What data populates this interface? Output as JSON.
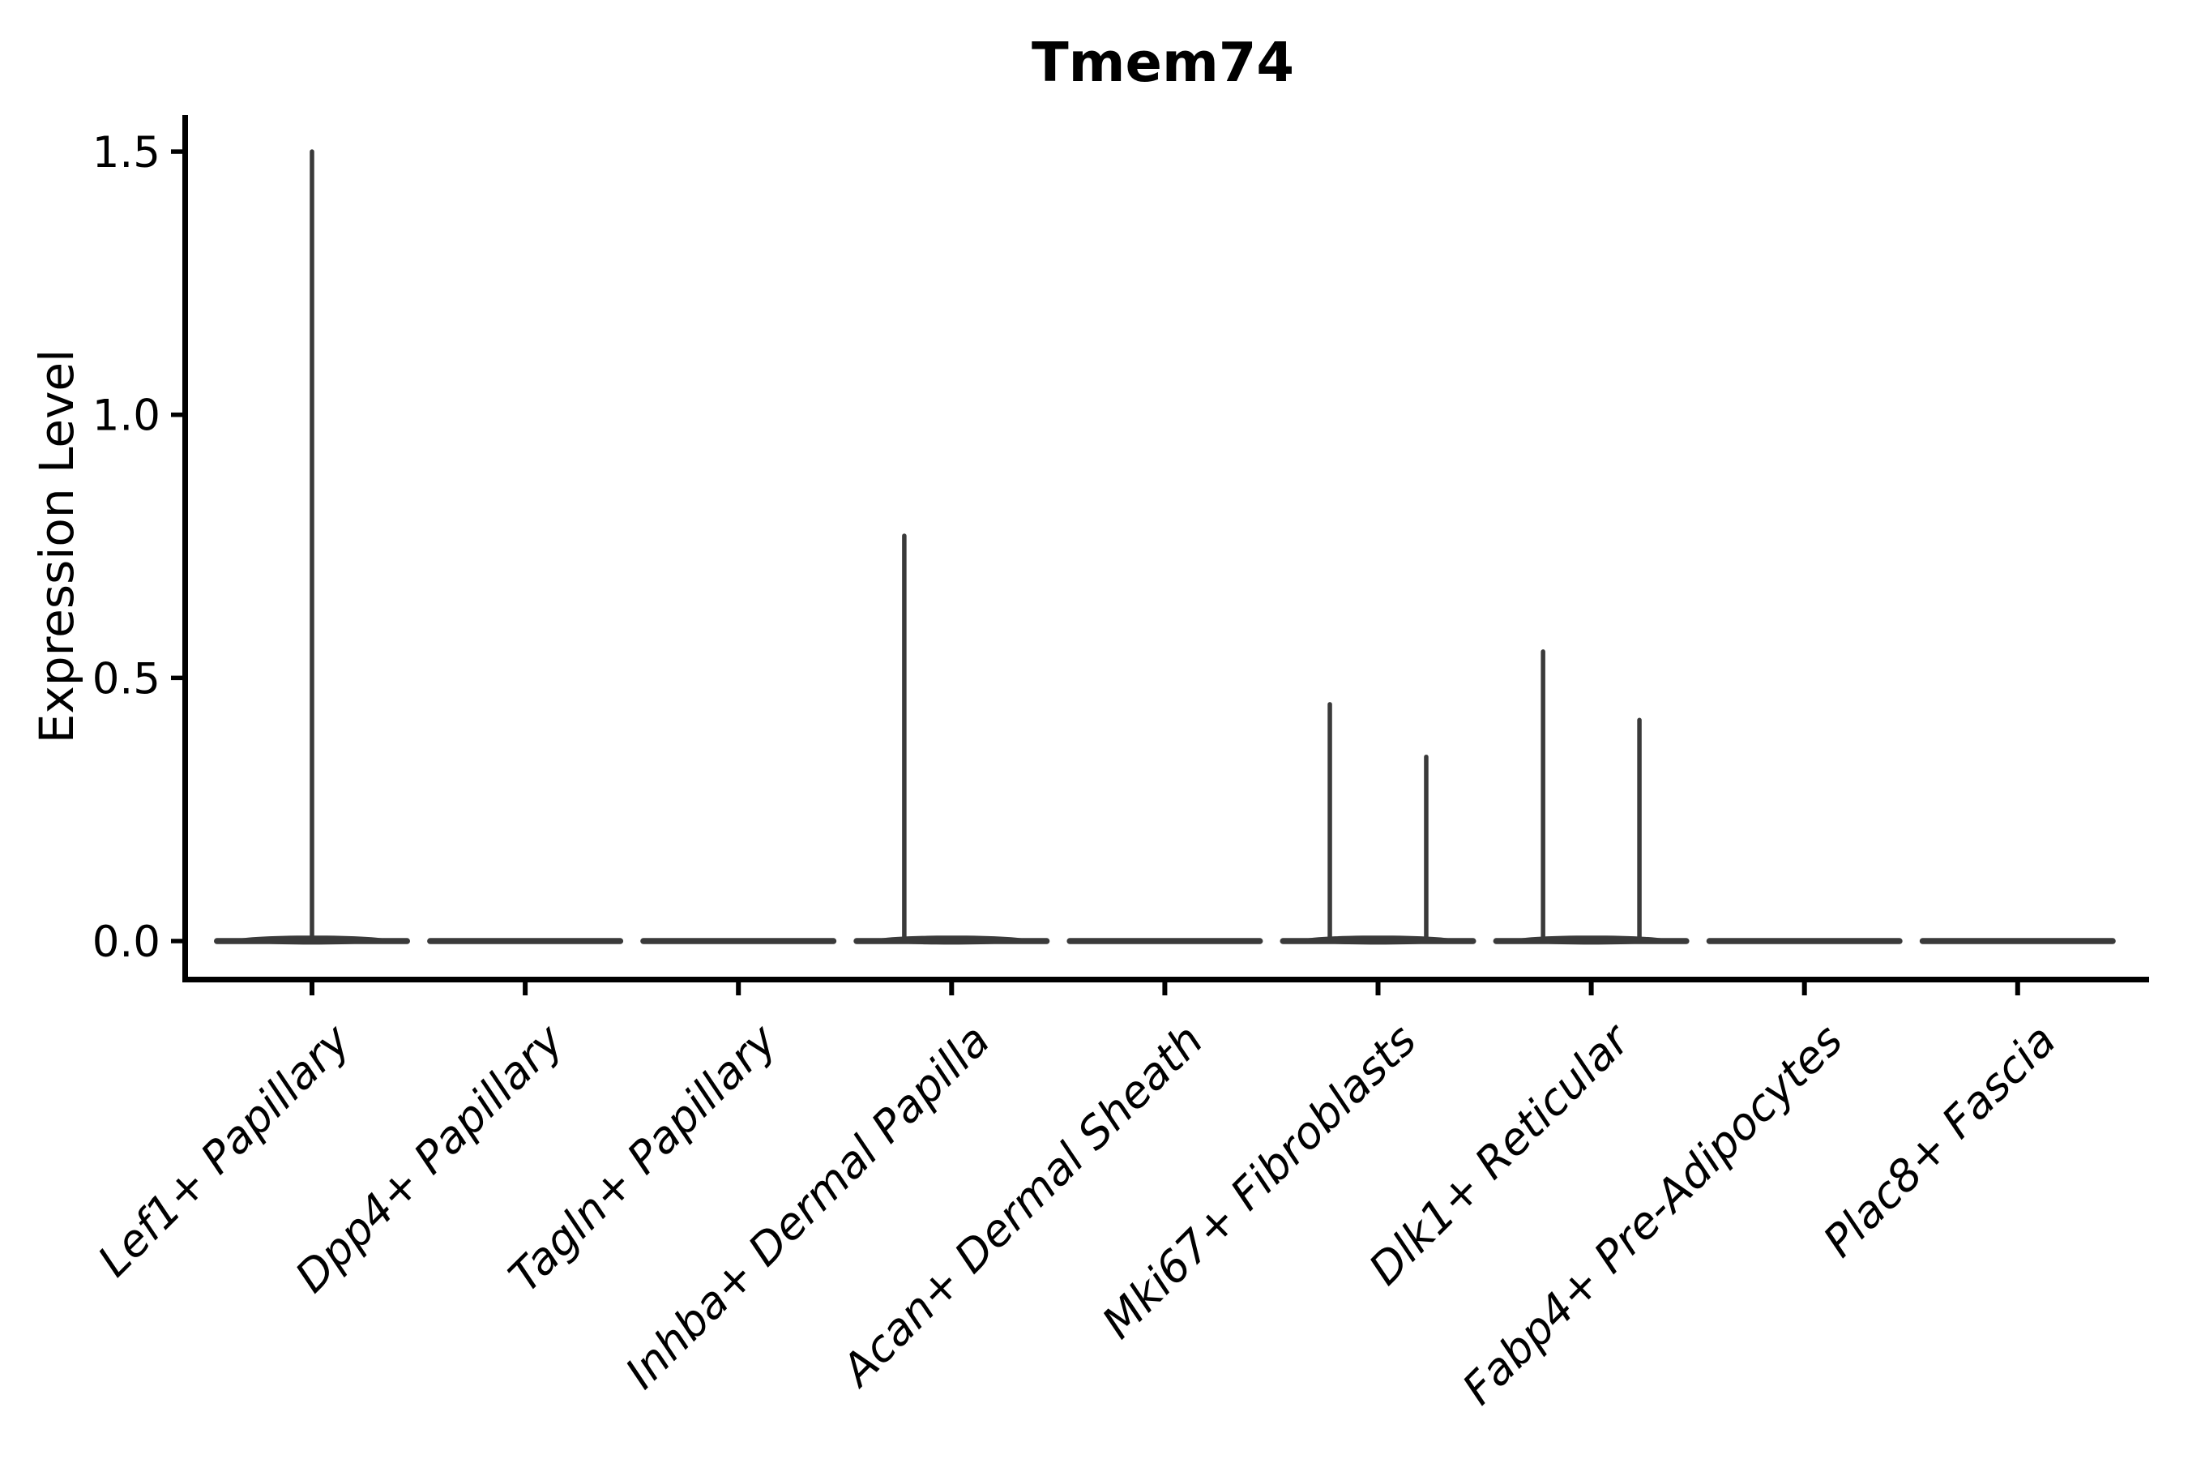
{
  "chart_data": {
    "type": "violin",
    "title": "Tmem74",
    "xlabel": "",
    "ylabel": "Expression Level",
    "ylim": [
      0,
      1.5
    ],
    "yticks": [
      {
        "value": 0.0,
        "label": "0.0"
      },
      {
        "value": 0.5,
        "label": "0.5"
      },
      {
        "value": 1.0,
        "label": "1.0"
      },
      {
        "value": 1.5,
        "label": "1.5"
      }
    ],
    "categories": [
      "Lef1+ Papillary",
      "Dpp4+ Papillary",
      "Tagln+ Papillary",
      "Inhba+ Dermal Papilla",
      "Acan+ Dermal Sheath",
      "Mki67+ Fibroblasts",
      "Dlk1+ Reticular",
      "Fabp4+ Pre-Adipocytes",
      "Plac8+ Fascia"
    ],
    "violins": [
      {
        "category": "Lef1+ Papillary",
        "max_expression": 1.5,
        "spikes": [
          {
            "offset": 0.0,
            "value": 1.5
          }
        ]
      },
      {
        "category": "Dpp4+ Papillary",
        "max_expression": 0.0,
        "spikes": []
      },
      {
        "category": "Tagln+ Papillary",
        "max_expression": 0.0,
        "spikes": []
      },
      {
        "category": "Inhba+ Dermal Papilla",
        "max_expression": 0.77,
        "spikes": [
          {
            "offset": -0.222,
            "value": 0.77
          }
        ]
      },
      {
        "category": "Acan+ Dermal Sheath",
        "max_expression": 0.0,
        "spikes": []
      },
      {
        "category": "Mki67+ Fibroblasts",
        "max_expression": 0.45,
        "spikes": [
          {
            "offset": -0.226,
            "value": 0.45
          },
          {
            "offset": 0.226,
            "value": 0.35
          }
        ]
      },
      {
        "category": "Dlk1+ Reticular",
        "max_expression": 0.55,
        "spikes": [
          {
            "offset": -0.226,
            "value": 0.55
          },
          {
            "offset": 0.226,
            "value": 0.42
          }
        ]
      },
      {
        "category": "Fabp4+ Pre-Adipocytes",
        "max_expression": 0.0,
        "spikes": []
      },
      {
        "category": "Plac8+ Fascia",
        "max_expression": 0.0,
        "spikes": []
      }
    ],
    "layout": {
      "grid": false,
      "legend": false,
      "xtick_rotation_deg": 45,
      "xtick_font_style": "italic"
    },
    "colors": {
      "violin": "#3a3a3a",
      "axis": "#000000",
      "text": "#000000",
      "background": "#ffffff"
    }
  }
}
